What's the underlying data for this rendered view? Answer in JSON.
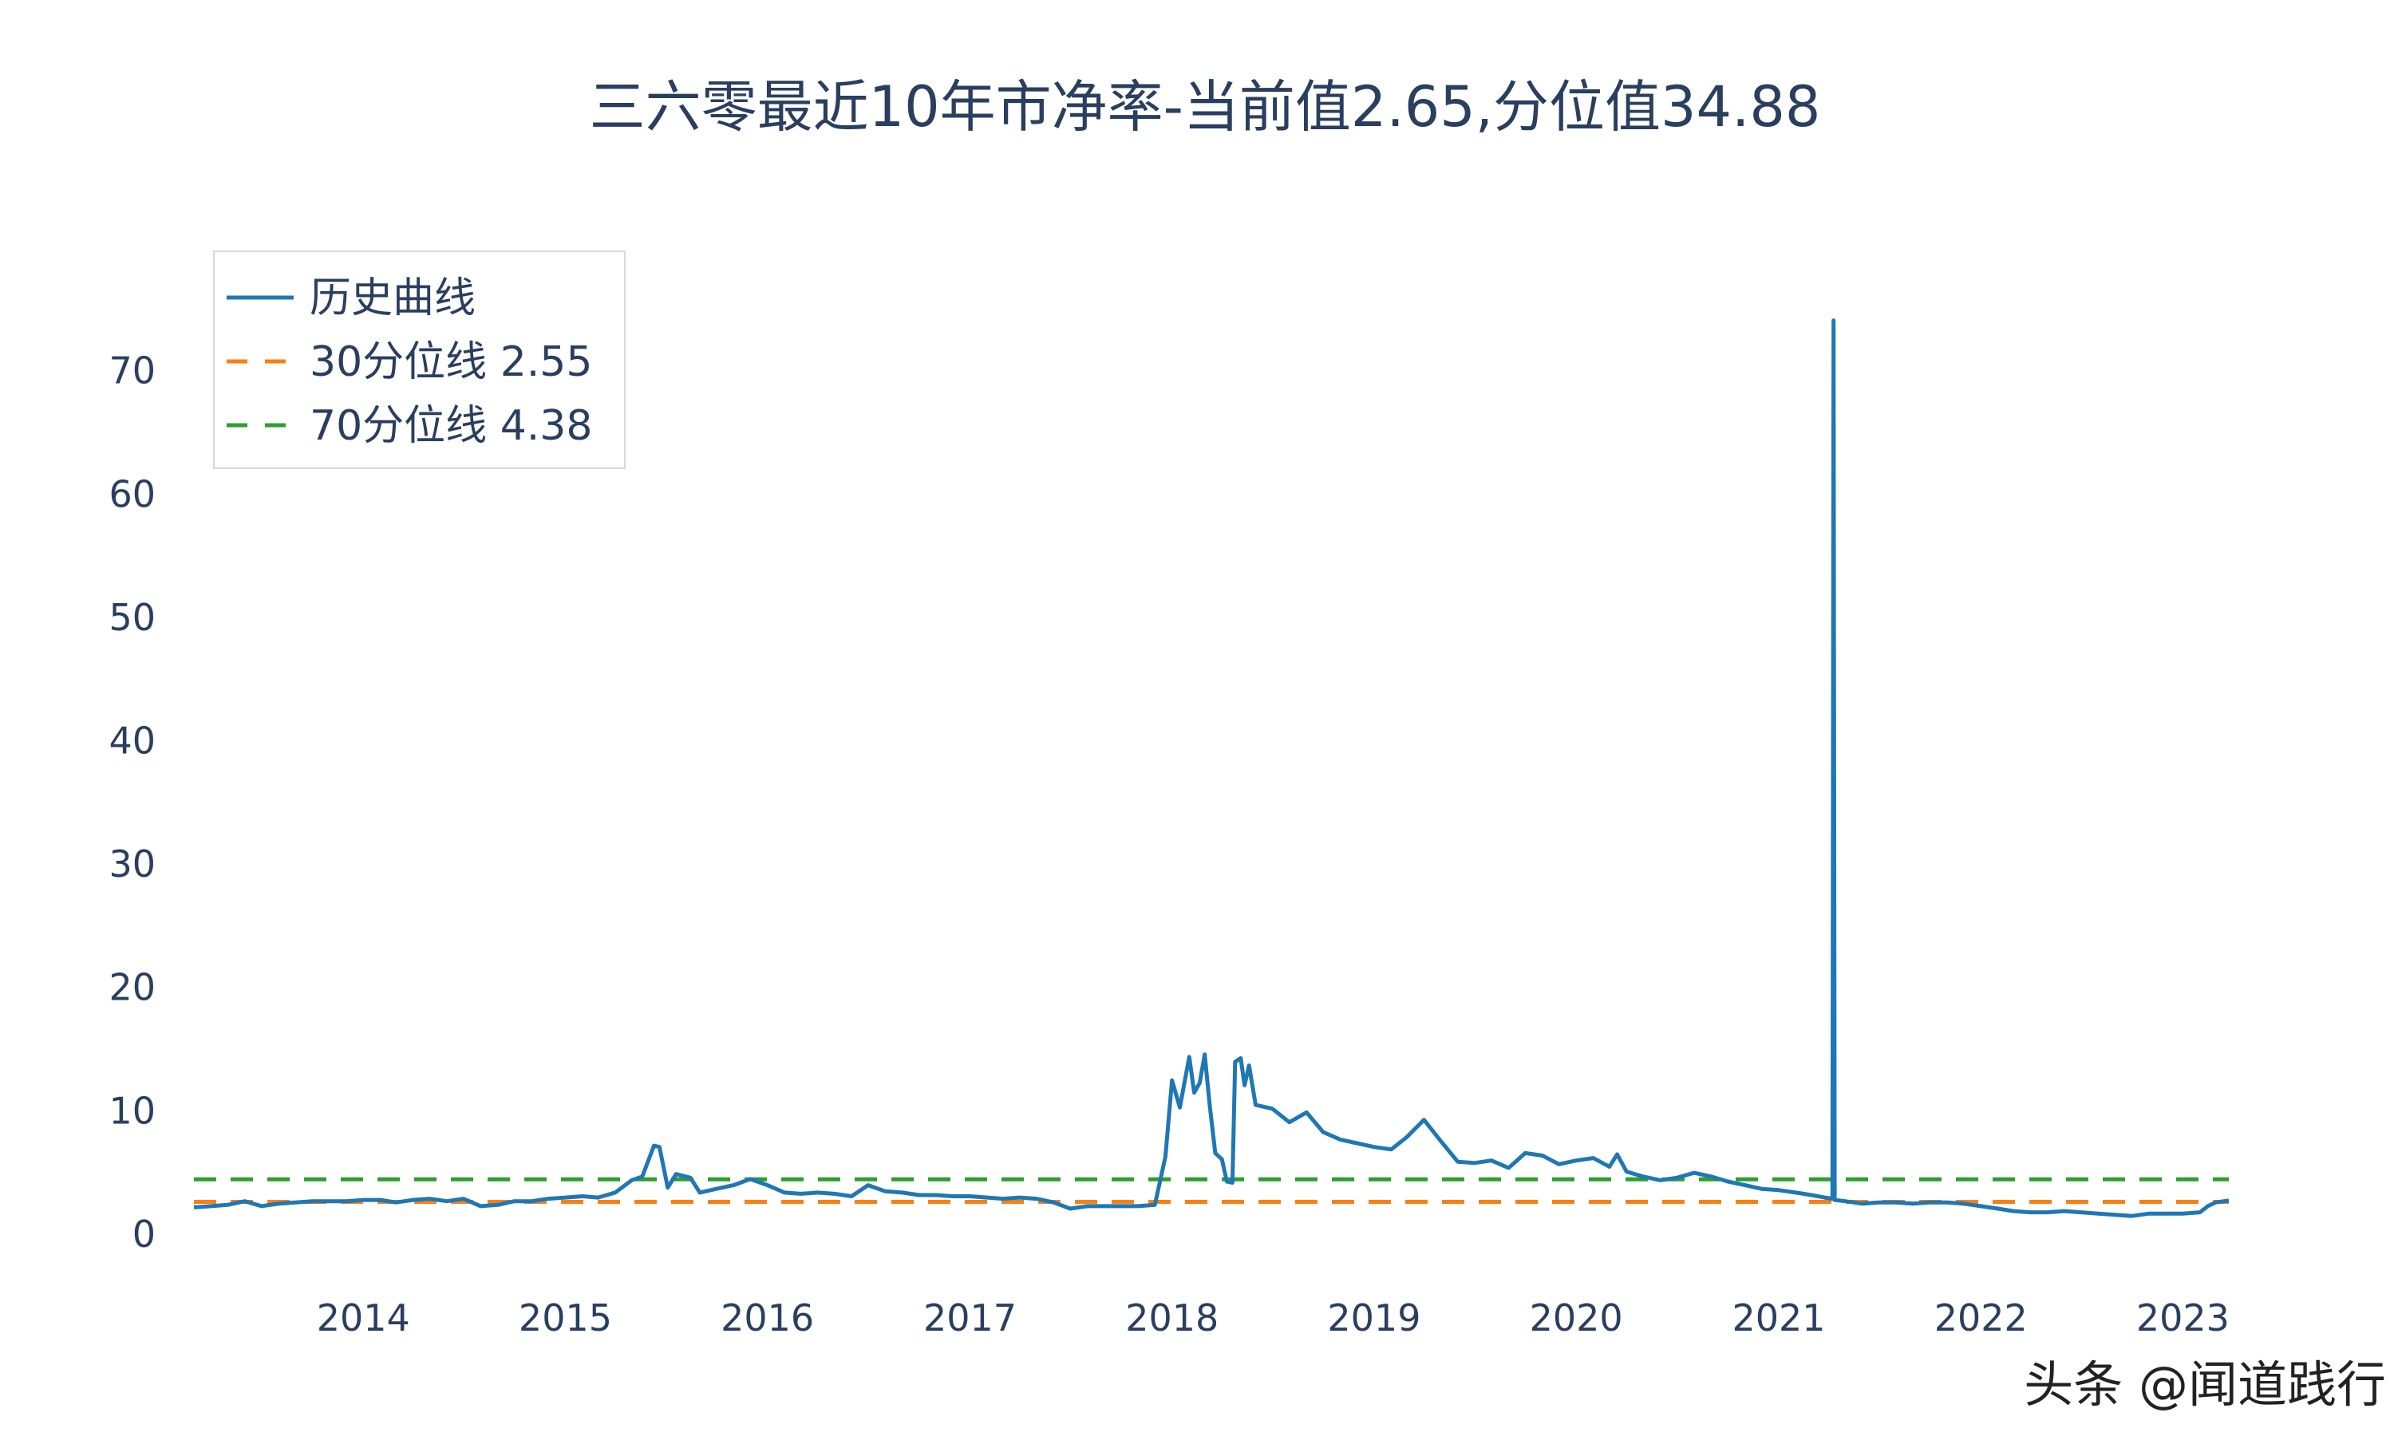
{
  "chart_data": {
    "type": "line",
    "title": "三六零最近10年市净率-当前值2.65,分位值34.88",
    "xlabel": "",
    "ylabel": "",
    "x_ticks": [
      "2014",
      "2015",
      "2016",
      "2017",
      "2018",
      "2019",
      "2020",
      "2021",
      "2022",
      "2023"
    ],
    "y_ticks": [
      0,
      10,
      20,
      30,
      40,
      50,
      60,
      70
    ],
    "xlim": [
      "2013-03-01",
      "2023-03-25"
    ],
    "ylim": [
      -3.5,
      78
    ],
    "grid": false,
    "legend_position": "top-left",
    "series": [
      {
        "name": "历史曲线",
        "color": "#1f77b4",
        "style": "solid",
        "points": [
          [
            "2013-03-01",
            2.1
          ],
          [
            "2013-04-01",
            2.2
          ],
          [
            "2013-05-01",
            2.3
          ],
          [
            "2013-06-01",
            2.6
          ],
          [
            "2013-07-01",
            2.2
          ],
          [
            "2013-08-01",
            2.4
          ],
          [
            "2013-09-01",
            2.5
          ],
          [
            "2013-10-01",
            2.6
          ],
          [
            "2013-11-01",
            2.6
          ],
          [
            "2013-12-01",
            2.6
          ],
          [
            "2014-01-01",
            2.7
          ],
          [
            "2014-02-01",
            2.7
          ],
          [
            "2014-03-01",
            2.5
          ],
          [
            "2014-04-01",
            2.7
          ],
          [
            "2014-05-01",
            2.8
          ],
          [
            "2014-06-01",
            2.6
          ],
          [
            "2014-07-01",
            2.8
          ],
          [
            "2014-08-01",
            2.2
          ],
          [
            "2014-09-01",
            2.3
          ],
          [
            "2014-10-01",
            2.6
          ],
          [
            "2014-11-01",
            2.6
          ],
          [
            "2014-12-01",
            2.8
          ],
          [
            "2015-01-01",
            2.9
          ],
          [
            "2015-02-01",
            3.0
          ],
          [
            "2015-03-01",
            2.9
          ],
          [
            "2015-04-01",
            3.3
          ],
          [
            "2015-05-01",
            4.3
          ],
          [
            "2015-05-20",
            4.6
          ],
          [
            "2015-06-10",
            7.1
          ],
          [
            "2015-06-20",
            7.0
          ],
          [
            "2015-07-05",
            3.7
          ],
          [
            "2015-07-20",
            4.8
          ],
          [
            "2015-08-15",
            4.5
          ],
          [
            "2015-09-01",
            3.3
          ],
          [
            "2015-10-01",
            3.6
          ],
          [
            "2015-11-01",
            3.9
          ],
          [
            "2015-12-01",
            4.4
          ],
          [
            "2016-01-01",
            3.9
          ],
          [
            "2016-02-01",
            3.3
          ],
          [
            "2016-03-01",
            3.2
          ],
          [
            "2016-04-01",
            3.3
          ],
          [
            "2016-05-01",
            3.2
          ],
          [
            "2016-06-01",
            3.0
          ],
          [
            "2016-07-01",
            3.9
          ],
          [
            "2016-08-01",
            3.4
          ],
          [
            "2016-09-01",
            3.3
          ],
          [
            "2016-10-01",
            3.1
          ],
          [
            "2016-11-01",
            3.1
          ],
          [
            "2016-12-01",
            3.0
          ],
          [
            "2017-01-01",
            3.0
          ],
          [
            "2017-02-01",
            2.9
          ],
          [
            "2017-03-01",
            2.8
          ],
          [
            "2017-04-01",
            2.9
          ],
          [
            "2017-05-01",
            2.8
          ],
          [
            "2017-06-01",
            2.5
          ],
          [
            "2017-07-01",
            2.0
          ],
          [
            "2017-08-01",
            2.2
          ],
          [
            "2017-09-01",
            2.2
          ],
          [
            "2017-10-01",
            2.2
          ],
          [
            "2017-11-01",
            2.2
          ],
          [
            "2017-12-01",
            2.3
          ],
          [
            "2017-12-20",
            6.2
          ],
          [
            "2018-01-01",
            12.4
          ],
          [
            "2018-01-15",
            10.2
          ],
          [
            "2018-02-01",
            14.3
          ],
          [
            "2018-02-10",
            11.4
          ],
          [
            "2018-02-20",
            12.2
          ],
          [
            "2018-03-01",
            14.5
          ],
          [
            "2018-03-10",
            10.4
          ],
          [
            "2018-03-20",
            6.5
          ],
          [
            "2018-04-01",
            6.0
          ],
          [
            "2018-04-10",
            4.2
          ],
          [
            "2018-04-20",
            4.1
          ],
          [
            "2018-04-25",
            13.9
          ],
          [
            "2018-05-05",
            14.2
          ],
          [
            "2018-05-12",
            12.0
          ],
          [
            "2018-05-20",
            13.6
          ],
          [
            "2018-06-01",
            10.4
          ],
          [
            "2018-07-01",
            10.1
          ],
          [
            "2018-08-01",
            9.0
          ],
          [
            "2018-09-01",
            9.8
          ],
          [
            "2018-10-01",
            8.2
          ],
          [
            "2018-11-01",
            7.6
          ],
          [
            "2018-12-01",
            7.3
          ],
          [
            "2019-01-01",
            7.0
          ],
          [
            "2019-02-01",
            6.8
          ],
          [
            "2019-03-01",
            7.8
          ],
          [
            "2019-04-01",
            9.2
          ],
          [
            "2019-05-01",
            7.5
          ],
          [
            "2019-06-01",
            5.8
          ],
          [
            "2019-07-01",
            5.7
          ],
          [
            "2019-08-01",
            5.9
          ],
          [
            "2019-09-01",
            5.3
          ],
          [
            "2019-10-01",
            6.5
          ],
          [
            "2019-11-01",
            6.3
          ],
          [
            "2019-12-01",
            5.6
          ],
          [
            "2020-01-01",
            5.9
          ],
          [
            "2020-02-01",
            6.1
          ],
          [
            "2020-03-01",
            5.4
          ],
          [
            "2020-03-15",
            6.4
          ],
          [
            "2020-04-01",
            5.0
          ],
          [
            "2020-05-01",
            4.6
          ],
          [
            "2020-06-01",
            4.3
          ],
          [
            "2020-07-01",
            4.5
          ],
          [
            "2020-08-01",
            4.9
          ],
          [
            "2020-09-01",
            4.6
          ],
          [
            "2020-10-01",
            4.2
          ],
          [
            "2020-11-01",
            3.9
          ],
          [
            "2020-12-01",
            3.6
          ],
          [
            "2021-01-01",
            3.5
          ],
          [
            "2021-02-01",
            3.3
          ],
          [
            "2021-03-01",
            3.1
          ],
          [
            "2021-03-25",
            2.9
          ],
          [
            "2021-04-08",
            2.8
          ],
          [
            "2021-04-10",
            74.0
          ],
          [
            "2021-04-12",
            2.7
          ],
          [
            "2021-05-01",
            2.6
          ],
          [
            "2021-06-01",
            2.4
          ],
          [
            "2021-07-01",
            2.5
          ],
          [
            "2021-08-01",
            2.5
          ],
          [
            "2021-09-01",
            2.4
          ],
          [
            "2021-10-01",
            2.5
          ],
          [
            "2021-11-01",
            2.5
          ],
          [
            "2021-12-01",
            2.4
          ],
          [
            "2022-01-01",
            2.2
          ],
          [
            "2022-02-01",
            2.0
          ],
          [
            "2022-03-01",
            1.8
          ],
          [
            "2022-04-01",
            1.7
          ],
          [
            "2022-05-01",
            1.7
          ],
          [
            "2022-06-01",
            1.8
          ],
          [
            "2022-07-01",
            1.7
          ],
          [
            "2022-08-01",
            1.6
          ],
          [
            "2022-09-01",
            1.5
          ],
          [
            "2022-10-01",
            1.4
          ],
          [
            "2022-11-01",
            1.6
          ],
          [
            "2022-12-01",
            1.6
          ],
          [
            "2023-01-01",
            1.6
          ],
          [
            "2023-02-01",
            1.7
          ],
          [
            "2023-02-15",
            2.2
          ],
          [
            "2023-03-01",
            2.5
          ],
          [
            "2023-03-25",
            2.65
          ]
        ]
      },
      {
        "name": "30分位线 2.55",
        "color": "#ff7f0e",
        "style": "dashed",
        "points": [
          [
            "2013-03-01",
            2.55
          ],
          [
            "2023-03-25",
            2.55
          ]
        ]
      },
      {
        "name": "70分位线 4.38",
        "color": "#2ca02c",
        "style": "dashed",
        "points": [
          [
            "2013-03-01",
            4.38
          ],
          [
            "2023-03-25",
            4.38
          ]
        ]
      }
    ]
  },
  "watermark": "头条 @闻道践行"
}
